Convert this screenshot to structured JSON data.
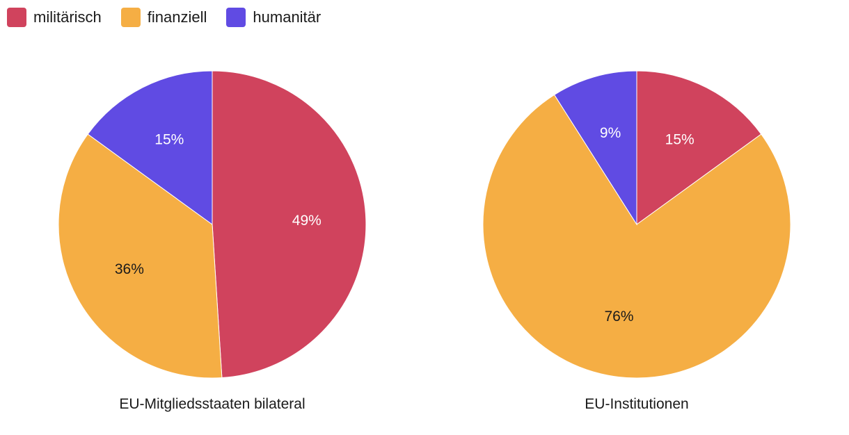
{
  "legend": {
    "items": [
      {
        "label": "militärisch",
        "color": "#d0435d"
      },
      {
        "label": "finanziell",
        "color": "#f5ae44"
      },
      {
        "label": "humanitär",
        "color": "#604be3"
      }
    ]
  },
  "chart_data": [
    {
      "type": "pie",
      "title": "EU-Mitgliedsstaaten bilateral",
      "slices": [
        {
          "name": "militärisch",
          "value": 49,
          "label": "49%",
          "color": "#d0435d",
          "label_color": "#ffffff"
        },
        {
          "name": "finanziell",
          "value": 36,
          "label": "36%",
          "color": "#f5ae44",
          "label_color": "#1a1a1a"
        },
        {
          "name": "humanitär",
          "value": 15,
          "label": "15%",
          "color": "#604be3",
          "label_color": "#ffffff"
        }
      ]
    },
    {
      "type": "pie",
      "title": "EU-Institutionen",
      "slices": [
        {
          "name": "militärisch",
          "value": 15,
          "label": "15%",
          "color": "#d0435d",
          "label_color": "#ffffff"
        },
        {
          "name": "finanziell",
          "value": 76,
          "label": "76%",
          "color": "#f5ae44",
          "label_color": "#1a1a1a"
        },
        {
          "name": "humanitär",
          "value": 9,
          "label": "9%",
          "color": "#604be3",
          "label_color": "#ffffff"
        }
      ]
    }
  ]
}
